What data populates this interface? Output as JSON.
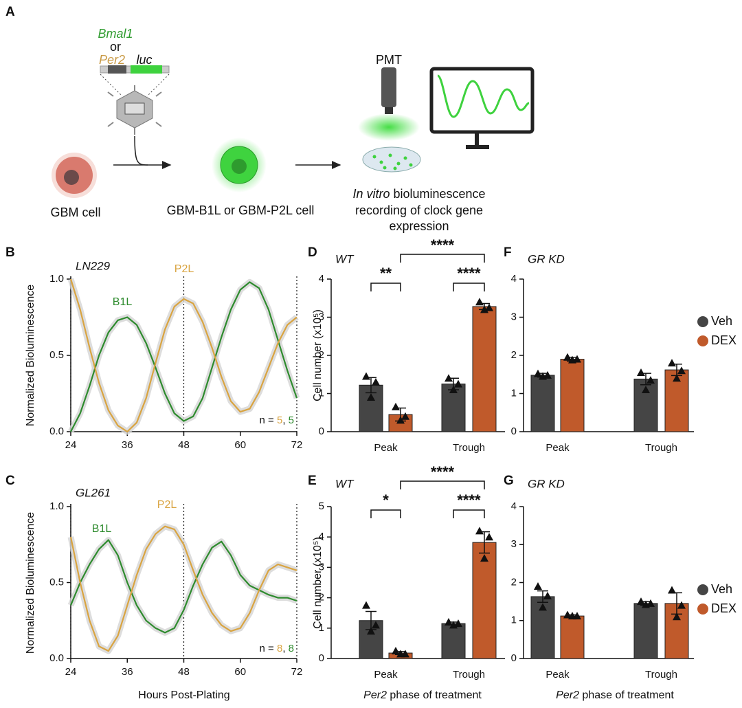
{
  "panel_a": {
    "panel": "A",
    "gene1": "Bmal1",
    "or": "or",
    "gene2": "Per2",
    "reporter": "luc",
    "cell1": "GBM cell",
    "cell2": "GBM-B1L or GBM-P2L cell",
    "pmt": "PMT",
    "caption_italic": "In vitro",
    "caption1": " bioluminescence",
    "caption2": "recording of clock gene",
    "caption3": "expression"
  },
  "chart_data": [
    {
      "type": "line",
      "panel": "B",
      "title": "LN229",
      "ylabel": "Normalized Bioluminescence",
      "x": [
        24,
        26,
        28,
        30,
        32,
        34,
        36,
        38,
        40,
        42,
        44,
        46,
        48,
        50,
        52,
        54,
        56,
        58,
        60,
        62,
        64,
        66,
        68,
        70,
        72
      ],
      "series": [
        {
          "name": "B1L",
          "color": "#2e8b2e",
          "values": [
            0.0,
            0.12,
            0.3,
            0.5,
            0.65,
            0.73,
            0.75,
            0.7,
            0.58,
            0.42,
            0.25,
            0.12,
            0.07,
            0.1,
            0.22,
            0.42,
            0.62,
            0.8,
            0.93,
            0.98,
            0.94,
            0.8,
            0.6,
            0.4,
            0.22
          ]
        },
        {
          "name": "P2L",
          "color": "#d9a441",
          "values": [
            1.0,
            0.8,
            0.55,
            0.32,
            0.14,
            0.04,
            0.0,
            0.06,
            0.22,
            0.45,
            0.67,
            0.82,
            0.87,
            0.84,
            0.72,
            0.55,
            0.36,
            0.2,
            0.13,
            0.15,
            0.26,
            0.42,
            0.58,
            0.7,
            0.75
          ]
        }
      ],
      "xlim": [
        24,
        72
      ],
      "xticks": [
        24,
        36,
        48,
        60,
        72
      ],
      "ylim": [
        0,
        1
      ],
      "yticks": [
        {
          "value": 0,
          "label": "0.0"
        },
        {
          "value": 0.5,
          "label": "0.5"
        },
        {
          "value": 1,
          "label": "1.0"
        }
      ],
      "reference_lines": [
        24,
        48,
        72
      ],
      "n_parts": [
        "n = ",
        "5",
        ", ",
        "5"
      ]
    },
    {
      "type": "line",
      "panel": "C",
      "title": "GL261",
      "ylabel": "Normalized Bioluminescence",
      "xlabel": "Hours Post-Plating",
      "x": [
        24,
        26,
        28,
        30,
        32,
        34,
        36,
        38,
        40,
        42,
        44,
        46,
        48,
        50,
        52,
        54,
        56,
        58,
        60,
        62,
        64,
        66,
        68,
        70,
        72
      ],
      "series": [
        {
          "name": "B1L",
          "color": "#2e8b2e",
          "values": [
            0.35,
            0.5,
            0.62,
            0.72,
            0.78,
            0.68,
            0.5,
            0.35,
            0.25,
            0.2,
            0.17,
            0.2,
            0.32,
            0.48,
            0.62,
            0.73,
            0.77,
            0.68,
            0.55,
            0.48,
            0.45,
            0.42,
            0.4,
            0.4,
            0.38
          ]
        },
        {
          "name": "P2L",
          "color": "#d9a441",
          "values": [
            0.8,
            0.5,
            0.25,
            0.08,
            0.05,
            0.15,
            0.35,
            0.55,
            0.72,
            0.82,
            0.87,
            0.85,
            0.75,
            0.58,
            0.42,
            0.3,
            0.22,
            0.18,
            0.2,
            0.3,
            0.45,
            0.58,
            0.62,
            0.6,
            0.58
          ]
        }
      ],
      "xlim": [
        24,
        72
      ],
      "xticks": [
        24,
        36,
        48,
        60,
        72
      ],
      "ylim": [
        0,
        1
      ],
      "yticks": [
        {
          "value": 0,
          "label": "0.0"
        },
        {
          "value": 0.5,
          "label": "0.5"
        },
        {
          "value": 1,
          "label": "1.0"
        }
      ],
      "reference_lines": [
        24,
        48,
        72
      ],
      "n_parts": [
        "n = ",
        "8",
        ", ",
        "8"
      ]
    },
    {
      "type": "bar",
      "panel": "D",
      "title": "WT",
      "ylabel": "Cell number (x10⁵)",
      "categories": [
        "Peak",
        "Trough"
      ],
      "series": [
        {
          "name": "Veh",
          "color": "#454545",
          "values": [
            1.22,
            1.25
          ],
          "errors": [
            0.2,
            0.15
          ],
          "points": [
            [
              1.45,
              1.3,
              0.9
            ],
            [
              1.4,
              1.25,
              1.1
            ]
          ]
        },
        {
          "name": "DEX",
          "color": "#c05a2b",
          "values": [
            0.45,
            3.28
          ],
          "errors": [
            0.17,
            0.08
          ],
          "points": [
            [
              0.65,
              0.4,
              0.3
            ],
            [
              3.4,
              3.25,
              3.2
            ]
          ]
        }
      ],
      "ylim": [
        0,
        4
      ],
      "yticks": [
        0,
        1,
        2,
        3,
        4
      ],
      "significance": [
        "**",
        "****",
        "****"
      ]
    },
    {
      "type": "bar",
      "panel": "E",
      "title": "WT",
      "ylabel": "Cell number (x10⁵)",
      "categories": [
        "Peak",
        "Trough"
      ],
      "xlabel_italic": "Per2",
      "xlabel": " phase of treatment",
      "series": [
        {
          "name": "Veh",
          "color": "#454545",
          "values": [
            1.25,
            1.15
          ],
          "errors": [
            0.3,
            0.05
          ],
          "points": [
            [
              1.75,
              1.1,
              0.9
            ],
            [
              1.2,
              1.15,
              1.1
            ]
          ]
        },
        {
          "name": "DEX",
          "color": "#c05a2b",
          "values": [
            0.18,
            3.82
          ],
          "errors": [
            0.05,
            0.35
          ],
          "points": [
            [
              0.25,
              0.15,
              0.15
            ],
            [
              4.2,
              4.0,
              3.3
            ]
          ]
        }
      ],
      "ylim": [
        0,
        5
      ],
      "yticks": [
        0,
        1,
        2,
        3,
        4,
        5
      ],
      "significance": [
        "*",
        "****",
        "****"
      ]
    },
    {
      "type": "bar",
      "panel": "F",
      "title": "GR KD",
      "categories": [
        "Peak",
        "Trough"
      ],
      "legend": "right",
      "series": [
        {
          "name": "Veh",
          "color": "#454545",
          "values": [
            1.48,
            1.38
          ],
          "errors": [
            0.05,
            0.15
          ],
          "points": [
            [
              1.52,
              1.48,
              1.45
            ],
            [
              1.55,
              1.35,
              1.1
            ]
          ]
        },
        {
          "name": "DEX",
          "color": "#c05a2b",
          "values": [
            1.9,
            1.62
          ],
          "errors": [
            0.05,
            0.15
          ],
          "points": [
            [
              1.95,
              1.9,
              1.88
            ],
            [
              1.8,
              1.6,
              1.4
            ]
          ]
        }
      ],
      "ylim": [
        0,
        4
      ],
      "yticks": [
        0,
        1,
        2,
        3,
        4
      ]
    },
    {
      "type": "bar",
      "panel": "G",
      "title": "GR KD",
      "categories": [
        "Peak",
        "Trough"
      ],
      "legend": "right",
      "xlabel_italic": "Per2",
      "xlabel": " phase of treatment",
      "series": [
        {
          "name": "Veh",
          "color": "#454545",
          "values": [
            1.63,
            1.45
          ],
          "errors": [
            0.15,
            0.05
          ],
          "points": [
            [
              1.9,
              1.65,
              1.35
            ],
            [
              1.5,
              1.45,
              1.42
            ]
          ]
        },
        {
          "name": "DEX",
          "color": "#c05a2b",
          "values": [
            1.12,
            1.45
          ],
          "errors": [
            0.03,
            0.28
          ],
          "points": [
            [
              1.15,
              1.12,
              1.12
            ],
            [
              1.8,
              1.4,
              1.1
            ]
          ]
        }
      ],
      "ylim": [
        0,
        4
      ],
      "yticks": [
        0,
        1,
        2,
        3,
        4
      ]
    }
  ]
}
